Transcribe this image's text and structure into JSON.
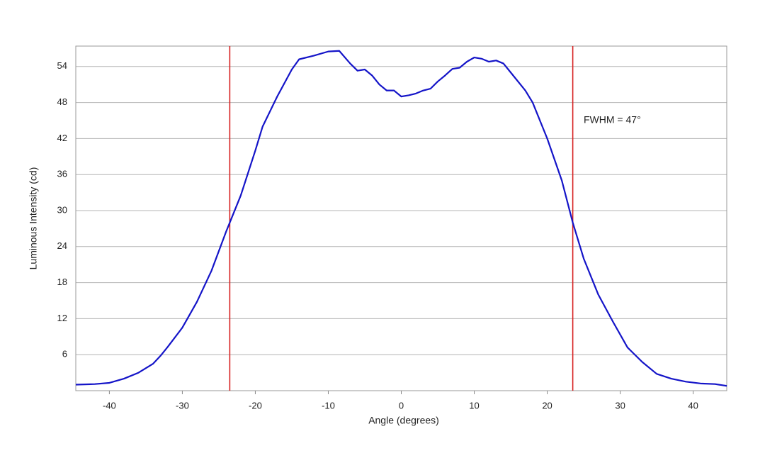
{
  "chart_data": {
    "type": "line",
    "xlabel": "Angle (degrees)",
    "ylabel": "Luminous Intensity (cd)",
    "annotation": "FWHM = 47°",
    "x": [
      -44.6,
      -42,
      -40,
      -38,
      -36,
      -34,
      -33,
      -32,
      -30,
      -28,
      -26,
      -24,
      -23.5,
      -22,
      -20,
      -19,
      -17,
      -15,
      -14,
      -12,
      -10,
      -8.5,
      -7,
      -6,
      -5,
      -4,
      -3,
      -2,
      -1,
      0,
      1,
      2,
      3,
      4,
      5,
      6,
      7,
      8,
      9,
      10,
      11,
      12,
      13,
      14,
      15,
      17,
      18,
      20,
      22,
      23.5,
      25,
      27,
      29,
      31,
      33,
      35,
      37,
      39,
      41,
      43,
      44.6
    ],
    "series": [
      {
        "color": "#1414c8",
        "values": [
          1.0,
          1.1,
          1.3,
          2.0,
          3.0,
          4.5,
          5.8,
          7.3,
          10.5,
          14.8,
          20,
          26.5,
          28,
          32.5,
          40,
          44,
          49,
          53.5,
          55.2,
          55.8,
          56.5,
          56.6,
          54.5,
          53.3,
          53.5,
          52.5,
          51,
          50,
          50,
          49,
          49.2,
          49.5,
          50,
          50.3,
          51.5,
          52.5,
          53.6,
          53.8,
          54.8,
          55.5,
          55.3,
          54.8,
          55,
          54.5,
          53,
          50,
          48,
          42,
          35,
          28,
          22,
          16,
          11.5,
          7.2,
          4.8,
          2.8,
          2,
          1.5,
          1.2,
          1.1,
          0.8
        ]
      }
    ],
    "vlines": [
      -23.5,
      23.5
    ],
    "vline_color": "#d62020",
    "xlim": [
      -44.6,
      44.6
    ],
    "ylim": [
      0,
      57.4
    ],
    "xticks": [
      -40,
      -30,
      -20,
      -10,
      0,
      10,
      20,
      30,
      40
    ],
    "yticks": [
      6,
      12,
      18,
      24,
      30,
      36,
      42,
      48,
      54
    ],
    "grid": true
  }
}
